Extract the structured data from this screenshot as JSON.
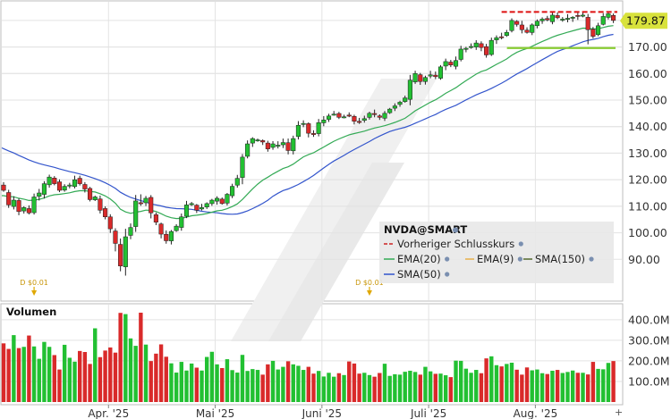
{
  "chart_data": {
    "type": "candlestick",
    "symbol_label": "NVDA@SMART",
    "last_price_label": "179.87",
    "last_price": 179.87,
    "previous_close": 183.2,
    "support_level": 169.6,
    "price_axis": {
      "min": 80,
      "max": 185,
      "ticks": [
        90,
        100,
        110,
        120,
        130,
        140,
        150,
        160,
        170
      ],
      "tick_labels": [
        "90.00",
        "100.00",
        "110.00",
        "120.00",
        "130.00",
        "140.00",
        "150.00",
        "160.00",
        "170.00"
      ]
    },
    "volume_axis": {
      "max": 460,
      "ticks": [
        100,
        200,
        300,
        400
      ],
      "tick_labels": [
        "100.0M",
        "200.0M",
        "300.0M",
        "400.0M"
      ],
      "title": "Volumen"
    },
    "month_labels": [
      {
        "label": "Apr. '25",
        "index": 21
      },
      {
        "label": "Mai '25",
        "index": 42
      },
      {
        "label": "Juni '25",
        "index": 63
      },
      {
        "label": "Juli '25",
        "index": 84
      },
      {
        "label": "Aug. '25",
        "index": 105
      }
    ],
    "dividend_markers": [
      {
        "label": "D $0.01",
        "index": 6
      },
      {
        "label": "D $0.01",
        "index": 72
      }
    ],
    "legend": {
      "title": "NVDA@SMART",
      "items": [
        {
          "label": "Vorheriger Schlusskurs",
          "color": "#cc2222",
          "style": "dashed"
        },
        {
          "label": "EMA(20)",
          "color": "#33aa55",
          "style": "solid"
        },
        {
          "label": "EMA(9)",
          "color": "#e8b04a",
          "style": "solid"
        },
        {
          "label": "SMA(150)",
          "color": "#556b2f",
          "style": "solid"
        },
        {
          "label": "SMA(50)",
          "color": "#3355cc",
          "style": "solid"
        }
      ]
    },
    "colors": {
      "up": "#22c032",
      "down": "#d92a2a",
      "ema20": "#33aa55",
      "sma50": "#3355cc",
      "grid": "#e3e3e3",
      "prev_close": "#dd1111",
      "support": "#88cc33",
      "price_tag": "#d8e23c"
    },
    "closes": [
      116.0,
      110.5,
      112.3,
      108.0,
      109.5,
      107.5,
      113.5,
      115.0,
      118.5,
      121.0,
      118.5,
      116.0,
      117.5,
      118.0,
      120.0,
      118.5,
      116.5,
      112.5,
      113.5,
      108.5,
      106.0,
      101.5,
      96.0,
      87.5,
      98.5,
      102.0,
      112.0,
      111.0,
      113.0,
      107.5,
      104.0,
      99.5,
      97.0,
      100.5,
      102.5,
      106.0,
      110.5,
      111.0,
      108.5,
      109.5,
      111.0,
      112.3,
      113.0,
      111.0,
      114.5,
      117.5,
      120.5,
      128.5,
      133.5,
      135.5,
      135.0,
      134.2,
      131.6,
      133.5,
      133.0,
      134.0,
      131.0,
      135.5,
      140.5,
      141.2,
      137.5,
      137.0,
      141.5,
      142.5,
      144.0,
      144.7,
      143.5,
      143.7,
      144.0,
      142.0,
      141.8,
      143.0,
      145.0,
      144.6,
      143.5,
      145.0,
      146.6,
      147.8,
      149.2,
      150.8,
      157.5,
      160.0,
      157.0,
      158.5,
      159.5,
      158.8,
      162.5,
      164.5,
      163.2,
      164.9,
      169.2,
      169.5,
      170.2,
      171.5,
      169.8,
      167.0,
      172.5,
      173.5,
      173.8,
      175.5,
      180.0,
      178.5,
      176.5,
      175.5,
      178.3,
      179.7,
      180.5,
      180.2,
      182.0,
      181.0,
      180.5,
      180.8,
      181.2,
      181.5,
      182.0,
      176.5,
      174.0,
      178.0,
      181.5,
      182.5,
      180.0
    ],
    "volumes": [
      285,
      258,
      325,
      262,
      268,
      323,
      270,
      210,
      292,
      268,
      228,
      158,
      278,
      215,
      196,
      248,
      243,
      185,
      358,
      218,
      250,
      265,
      240,
      433,
      427,
      309,
      273,
      434,
      279,
      199,
      235,
      280,
      220,
      188,
      143,
      195,
      153,
      187,
      167,
      153,
      219,
      244,
      183,
      165,
      208,
      155,
      143,
      229,
      151,
      160,
      156,
      133,
      183,
      200,
      158,
      171,
      198,
      183,
      176,
      156,
      171,
      138,
      151,
      124,
      142,
      123,
      140,
      131,
      197,
      187,
      138,
      142,
      131,
      123,
      141,
      186,
      127,
      135,
      133,
      147,
      152,
      146,
      133,
      171,
      149,
      137,
      138,
      130,
      121,
      201,
      200,
      162,
      142,
      156,
      140,
      212,
      222,
      179,
      173,
      185,
      191,
      157,
      133,
      168,
      154,
      158,
      140,
      136,
      152,
      156,
      141,
      146,
      153,
      142,
      142,
      134,
      195,
      161,
      159,
      190,
      199
    ]
  }
}
